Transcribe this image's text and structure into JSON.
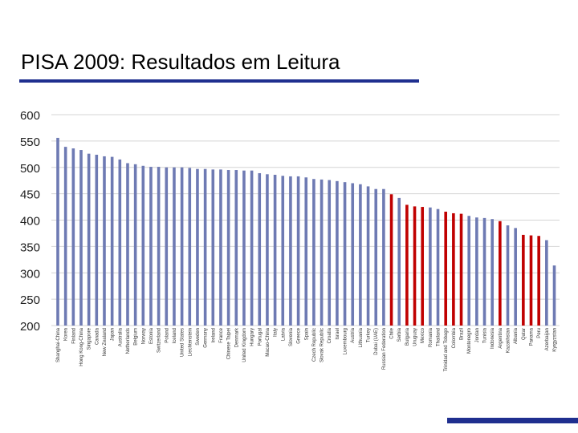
{
  "slide": {
    "title": "PISA  2009: Resultados em Leitura"
  },
  "colors": {
    "bar_default": "#6e7ab3",
    "bar_highlight": "#c00000",
    "grid": "#d4d4d4",
    "accent_rule": "#1f2f8f"
  },
  "chart_data": {
    "type": "bar",
    "title": "",
    "xlabel": "",
    "ylabel": "",
    "ylim": [
      200,
      600
    ],
    "yticks": [
      200,
      250,
      300,
      350,
      400,
      450,
      500,
      550,
      600
    ],
    "grid": true,
    "legend": "none",
    "highlight_categories": [
      "Chile",
      "Bulgaria",
      "Uruguay",
      "Mexico",
      "Trinidad and Tobago",
      "Colombia",
      "Brazil",
      "Argentina",
      "Qatar",
      "Panama",
      "Peru"
    ],
    "categories": [
      "Shanghai-China",
      "Korea",
      "Finland",
      "Hong Kong-China",
      "Singapore",
      "Canada",
      "New Zealand",
      "Japan",
      "Australia",
      "Netherlands",
      "Belgium",
      "Norway",
      "Estonia",
      "Switzerland",
      "Poland",
      "Iceland",
      "United States",
      "Liechtenstein",
      "Sweden",
      "Germany",
      "Ireland",
      "France",
      "Chinese Taipei",
      "Denmark",
      "United Kingdom",
      "Hungary",
      "Portugal",
      "Macao-China",
      "Italy",
      "Latvia",
      "Slovenia",
      "Greece",
      "Spain",
      "Czech Republic",
      "Slovak Republic",
      "Croatia",
      "Israel",
      "Luxembourg",
      "Austria",
      "Lithuania",
      "Turkey",
      "Dubai (UAE)",
      "Russian Federation",
      "Chile",
      "Serbia",
      "Bulgaria",
      "Uruguay",
      "Mexico",
      "Romania",
      "Thailand",
      "Trinidad and Tobago",
      "Colombia",
      "Brazil",
      "Montenegro",
      "Jordan",
      "Tunisia",
      "Indonesia",
      "Argentina",
      "Kazakhstan",
      "Albania",
      "Qatar",
      "Panama",
      "Peru",
      "Azerbaijan",
      "Kyrgyzstan"
    ],
    "values": [
      556,
      539,
      536,
      533,
      526,
      524,
      521,
      520,
      515,
      508,
      506,
      503,
      501,
      501,
      500,
      500,
      500,
      499,
      497,
      497,
      496,
      496,
      495,
      495,
      494,
      494,
      489,
      487,
      486,
      484,
      483,
      483,
      481,
      478,
      477,
      476,
      474,
      472,
      470,
      468,
      464,
      459,
      459,
      449,
      442,
      429,
      426,
      425,
      424,
      421,
      416,
      413,
      412,
      408,
      405,
      404,
      402,
      398,
      390,
      385,
      372,
      371,
      370,
      362,
      314
    ]
  }
}
